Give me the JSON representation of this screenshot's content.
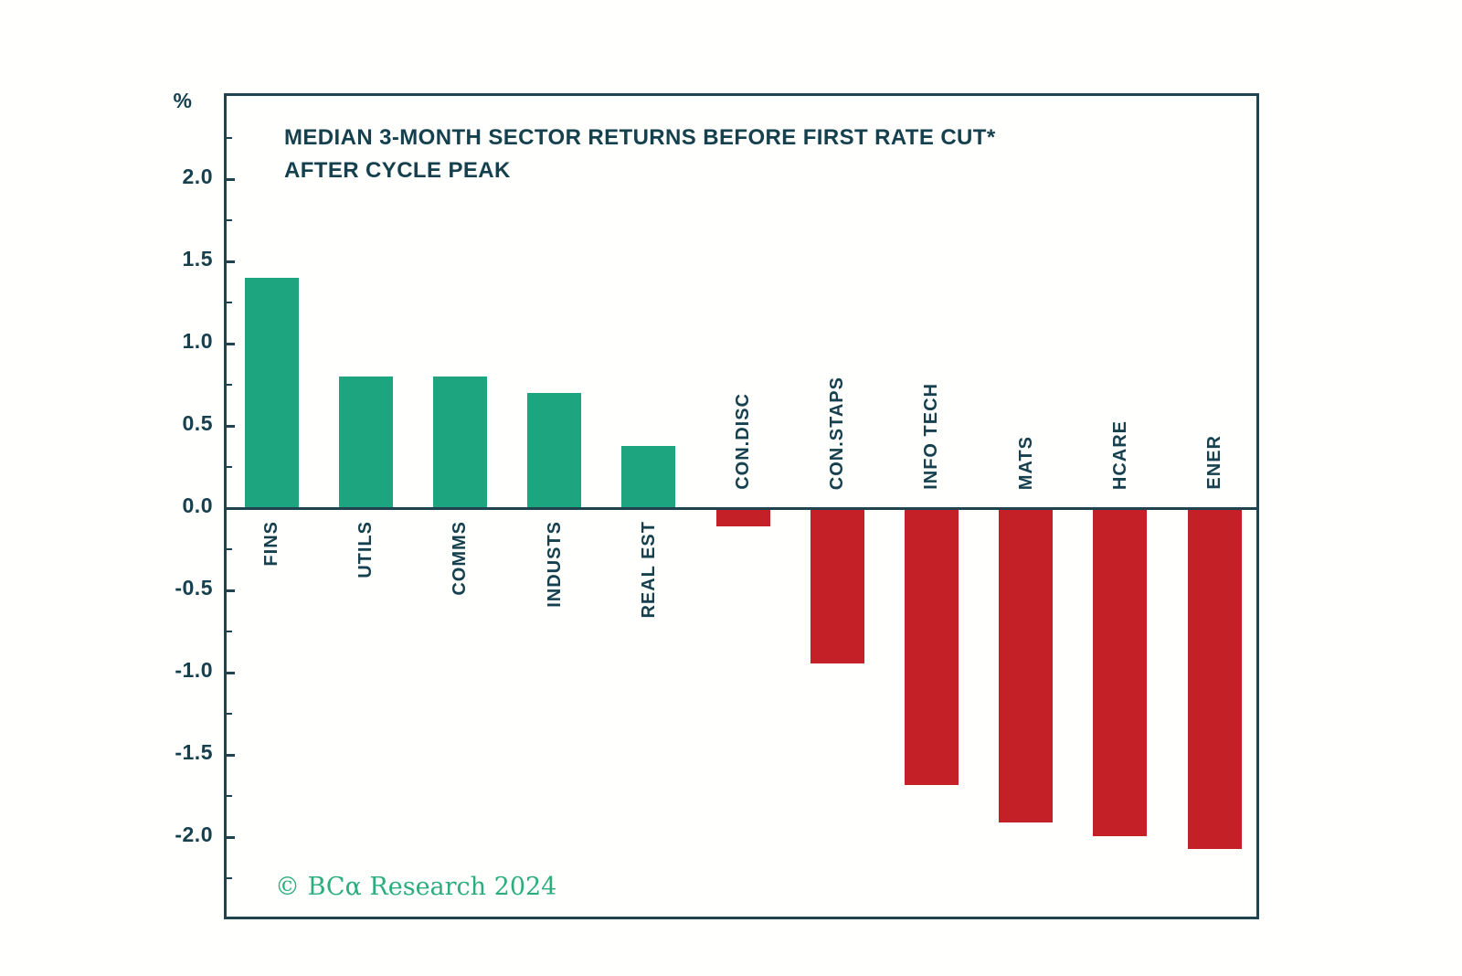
{
  "header": {
    "title_line1": "MEDIAN 3-MONTH SECTOR RETURNS BEFORE FIRST RATE CUT*",
    "title_line2": "AFTER CYCLE PEAK",
    "unit_label": "%"
  },
  "footer": {
    "credit": "© BCα Research 2024"
  },
  "colors": {
    "positive_bar": "#1ca57e",
    "negative_bar": "#c32027",
    "axis": "#1f4450",
    "text": "#16404e",
    "credit": "#2bad7d",
    "background": "#fffffe"
  },
  "chart_data": {
    "type": "bar",
    "title": "MEDIAN 3-MONTH SECTOR RETURNS BEFORE FIRST RATE CUT* AFTER CYCLE PEAK",
    "xlabel": "",
    "ylabel": "%",
    "categories": [
      "FINS",
      "UTILS",
      "COMMS",
      "INDUSTS",
      "REAL EST",
      "CON.DISC",
      "CON.STAPS",
      "INFO TECH",
      "MATS",
      "HCARE",
      "ENER"
    ],
    "values": [
      1.4,
      0.8,
      0.8,
      0.7,
      0.38,
      -0.11,
      -0.94,
      -1.68,
      -1.91,
      -1.99,
      -2.07
    ],
    "ylim": [
      -2.51,
      2.5
    ],
    "ytick_values": [
      2.0,
      1.5,
      1.0,
      0.5,
      0.0,
      -0.5,
      -1.0,
      -1.5,
      -2.0
    ],
    "ytick_labels": [
      "2.0",
      "1.5",
      "1.0",
      "0.5",
      "0.0",
      "-0.5",
      "-1.0",
      "-1.5",
      "-2.0"
    ],
    "ytick_minor_values": [
      2.25,
      1.75,
      1.25,
      0.75,
      0.25,
      -0.25,
      -0.75,
      -1.25,
      -1.75,
      -2.25
    ],
    "grid": "off",
    "legend": "none",
    "bar_color_rule": "green if value >= 0 else red",
    "credit": "© BCα Research 2024"
  }
}
